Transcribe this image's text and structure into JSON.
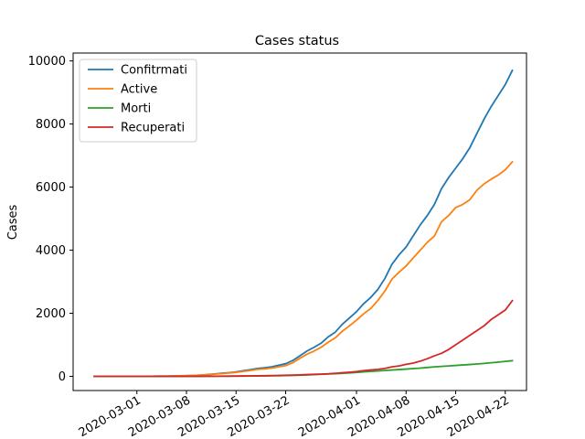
{
  "chart_data": {
    "type": "line",
    "title": "Cases status",
    "xlabel": "",
    "ylabel": "Cases",
    "x_start": "2020-02-24",
    "x_end": "2020-04-22",
    "xlim": [
      "2020-02-21",
      "2020-04-25"
    ],
    "ylim": [
      -450,
      10250
    ],
    "xticks": [
      {
        "date": "2020-03-01",
        "label": "2020-03-01"
      },
      {
        "date": "2020-03-08",
        "label": "2020-03-08"
      },
      {
        "date": "2020-03-15",
        "label": "2020-03-15"
      },
      {
        "date": "2020-03-22",
        "label": "2020-03-22"
      },
      {
        "date": "2020-04-01",
        "label": "2020-04-01"
      },
      {
        "date": "2020-04-08",
        "label": "2020-04-08"
      },
      {
        "date": "2020-04-15",
        "label": "2020-04-15"
      },
      {
        "date": "2020-04-22",
        "label": "2020-04-22"
      }
    ],
    "yticks": [
      0,
      2000,
      4000,
      6000,
      8000,
      10000
    ],
    "yticklabels": [
      "0",
      "2000",
      "4000",
      "6000",
      "8000",
      "10000"
    ],
    "legend_position": "top-left",
    "grid": false,
    "series": [
      {
        "name": "Confitrmati",
        "color": "#1f77b4",
        "values": [
          0,
          0,
          0,
          0,
          0,
          2,
          2,
          2,
          3,
          5,
          7,
          10,
          15,
          20,
          28,
          40,
          55,
          75,
          100,
          115,
          140,
          175,
          210,
          250,
          270,
          300,
          350,
          400,
          500,
          650,
          800,
          920,
          1050,
          1250,
          1400,
          1650,
          1850,
          2050,
          2300,
          2500,
          2750,
          3100,
          3550,
          3850,
          4100,
          4450,
          4800,
          5100,
          5450,
          5950,
          6300,
          6600,
          6900,
          7250,
          7700,
          8150,
          8550,
          8900,
          9250,
          9700
        ]
      },
      {
        "name": "Active",
        "color": "#ff7f0e",
        "values": [
          0,
          0,
          0,
          0,
          0,
          2,
          2,
          2,
          3,
          5,
          7,
          10,
          15,
          20,
          28,
          38,
          50,
          68,
          90,
          105,
          125,
          155,
          185,
          220,
          235,
          260,
          300,
          340,
          430,
          570,
          700,
          800,
          920,
          1080,
          1220,
          1430,
          1600,
          1780,
          1980,
          2150,
          2400,
          2700,
          3080,
          3300,
          3500,
          3750,
          4000,
          4250,
          4450,
          4900,
          5100,
          5350,
          5450,
          5600,
          5900,
          6100,
          6250,
          6380,
          6550,
          6800
        ]
      },
      {
        "name": "Morti",
        "color": "#2ca02c",
        "values": [
          0,
          0,
          0,
          0,
          0,
          0,
          0,
          0,
          0,
          0,
          0,
          0,
          0,
          0,
          0,
          1,
          2,
          3,
          4,
          5,
          7,
          9,
          11,
          13,
          15,
          17,
          20,
          24,
          30,
          38,
          45,
          55,
          65,
          75,
          85,
          95,
          110,
          125,
          140,
          155,
          170,
          185,
          200,
          215,
          230,
          245,
          260,
          280,
          300,
          315,
          330,
          345,
          360,
          375,
          390,
          410,
          430,
          450,
          475,
          495
        ]
      },
      {
        "name": "Recuperati",
        "color": "#d62728",
        "values": [
          0,
          0,
          0,
          0,
          0,
          0,
          0,
          0,
          0,
          0,
          0,
          0,
          0,
          0,
          0,
          1,
          3,
          4,
          6,
          7,
          9,
          12,
          14,
          16,
          20,
          23,
          28,
          34,
          40,
          45,
          55,
          65,
          70,
          80,
          95,
          115,
          130,
          150,
          180,
          200,
          220,
          250,
          300,
          330,
          380,
          420,
          480,
          560,
          650,
          730,
          850,
          1000,
          1150,
          1300,
          1450,
          1600,
          1800,
          1950,
          2100,
          2400
        ]
      }
    ]
  }
}
